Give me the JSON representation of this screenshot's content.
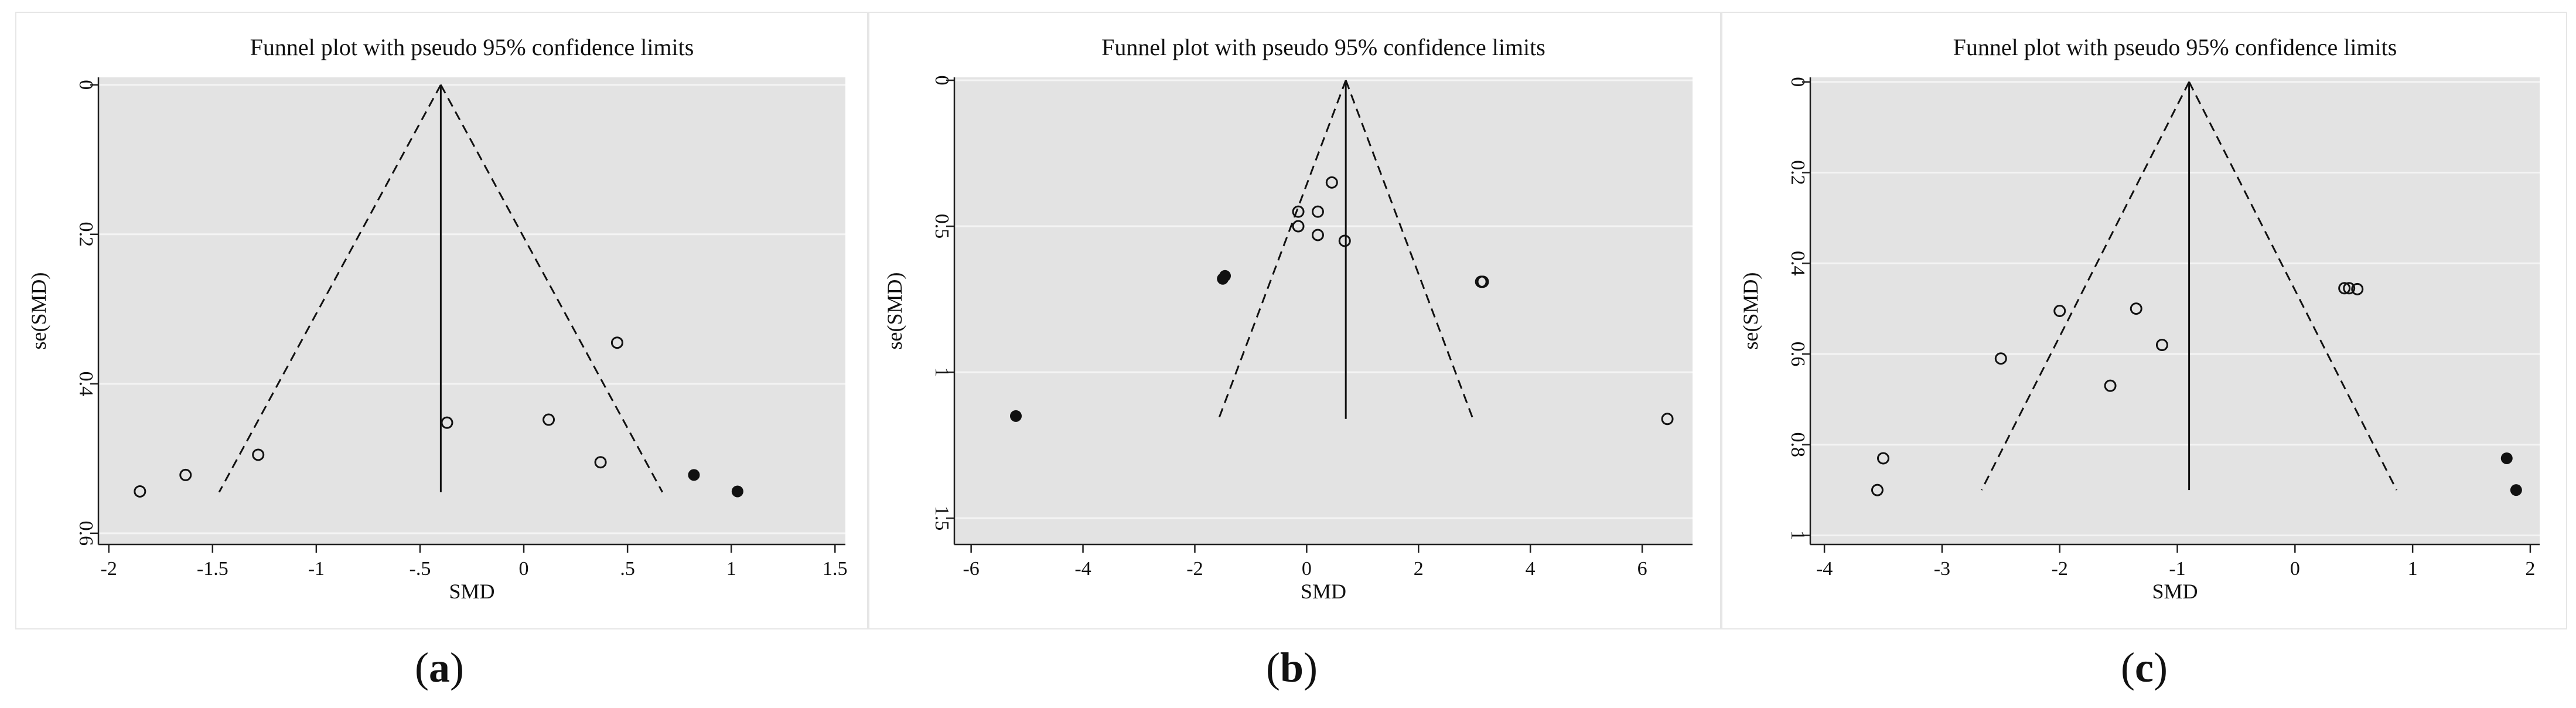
{
  "chart_data": [
    {
      "type": "scatter",
      "panel_label": "a",
      "title": "Funnel plot with pseudo 95% confidence limits",
      "xlabel": "SMD",
      "ylabel": "se(SMD)",
      "xlim": [
        -2.05,
        1.55
      ],
      "ylim": [
        -0.01,
        0.615
      ],
      "y_reversed": true,
      "xticks": [
        -2,
        -1.5,
        -1,
        -0.5,
        0,
        0.5,
        1,
        1.5
      ],
      "xtick_labels": [
        "-2",
        "-1.5",
        "-1",
        "-.5",
        "0",
        ".5",
        "1",
        "1.5"
      ],
      "yticks": [
        0,
        0.2,
        0.4,
        0.6
      ],
      "ytick_labels": [
        "0",
        "0.2",
        "0.4",
        "0.6"
      ],
      "grid": true,
      "funnel": {
        "center": -0.4,
        "se_max": 0.545,
        "z": 1.96
      },
      "points_observed": [
        {
          "x": -1.85,
          "y": 0.544
        },
        {
          "x": -1.63,
          "y": 0.522
        },
        {
          "x": -1.28,
          "y": 0.495
        },
        {
          "x": -0.37,
          "y": 0.452
        },
        {
          "x": 0.12,
          "y": 0.448
        },
        {
          "x": 0.37,
          "y": 0.505
        },
        {
          "x": 0.45,
          "y": 0.345
        }
      ],
      "points_imputed": [
        {
          "x": 0.82,
          "y": 0.522
        },
        {
          "x": 1.03,
          "y": 0.544
        }
      ]
    },
    {
      "type": "scatter",
      "panel_label": "b",
      "title": "Funnel plot with pseudo 95% confidence limits",
      "xlabel": "SMD",
      "ylabel": "se(SMD)",
      "xlim": [
        -6.3,
        6.9
      ],
      "ylim": [
        -0.01,
        1.59
      ],
      "y_reversed": true,
      "xticks": [
        -6,
        -4,
        -2,
        0,
        2,
        4,
        6
      ],
      "xtick_labels": [
        "-6",
        "-4",
        "-2",
        "0",
        "2",
        "4",
        "6"
      ],
      "yticks": [
        0,
        0.5,
        1,
        1.5
      ],
      "ytick_labels": [
        "0",
        "0.5",
        "1",
        "1.5"
      ],
      "grid": true,
      "funnel": {
        "center": 0.7,
        "se_max": 1.16,
        "z": 1.96
      },
      "points_observed": [
        {
          "x": 0.45,
          "y": 0.35
        },
        {
          "x": -0.15,
          "y": 0.45
        },
        {
          "x": 0.2,
          "y": 0.45
        },
        {
          "x": -0.15,
          "y": 0.5
        },
        {
          "x": 0.2,
          "y": 0.53
        },
        {
          "x": 0.68,
          "y": 0.55
        },
        {
          "x": 3.12,
          "y": 0.69
        },
        {
          "x": 3.15,
          "y": 0.69
        },
        {
          "x": 6.45,
          "y": 1.16
        }
      ],
      "points_imputed": [
        {
          "x": -1.5,
          "y": 0.68
        },
        {
          "x": -1.46,
          "y": 0.67
        },
        {
          "x": -5.2,
          "y": 1.15
        }
      ]
    },
    {
      "type": "scatter",
      "panel_label": "c",
      "title": "Funnel plot with pseudo 95% confidence limits",
      "xlabel": "SMD",
      "ylabel": "se(SMD)",
      "xlim": [
        -4.12,
        2.08
      ],
      "ylim": [
        -0.01,
        1.02
      ],
      "y_reversed": true,
      "xticks": [
        -4,
        -3,
        -2,
        -1,
        0,
        1,
        2
      ],
      "xtick_labels": [
        "-4",
        "-3",
        "-2",
        "-1",
        "0",
        "1",
        "2"
      ],
      "yticks": [
        0,
        0.2,
        0.4,
        0.6,
        0.8,
        1
      ],
      "ytick_labels": [
        "0",
        "0.2",
        "0.4",
        "0.6",
        "0.8",
        "1"
      ],
      "grid": true,
      "funnel": {
        "center": -0.9,
        "se_max": 0.9,
        "z": 1.96
      },
      "points_observed": [
        {
          "x": -3.5,
          "y": 0.83
        },
        {
          "x": -3.55,
          "y": 0.9
        },
        {
          "x": -2.5,
          "y": 0.61
        },
        {
          "x": -2.0,
          "y": 0.505
        },
        {
          "x": -1.57,
          "y": 0.67
        },
        {
          "x": -1.35,
          "y": 0.5
        },
        {
          "x": -1.13,
          "y": 0.58
        },
        {
          "x": 0.42,
          "y": 0.455
        },
        {
          "x": 0.46,
          "y": 0.455
        },
        {
          "x": 0.53,
          "y": 0.457
        }
      ],
      "points_imputed": [
        {
          "x": 1.8,
          "y": 0.83
        },
        {
          "x": 1.88,
          "y": 0.9
        }
      ]
    }
  ],
  "captions": {
    "a": {
      "open": "(",
      "letter": "a",
      "close": ")"
    },
    "b": {
      "open": "(",
      "letter": "b",
      "close": ")"
    },
    "c": {
      "open": "(",
      "letter": "c",
      "close": ")"
    }
  },
  "colors": {
    "plot_background": "#e3e3e3",
    "gridline": "#f4f4f4",
    "marker": "#111111",
    "panel_border": "#e6e6e6"
  }
}
